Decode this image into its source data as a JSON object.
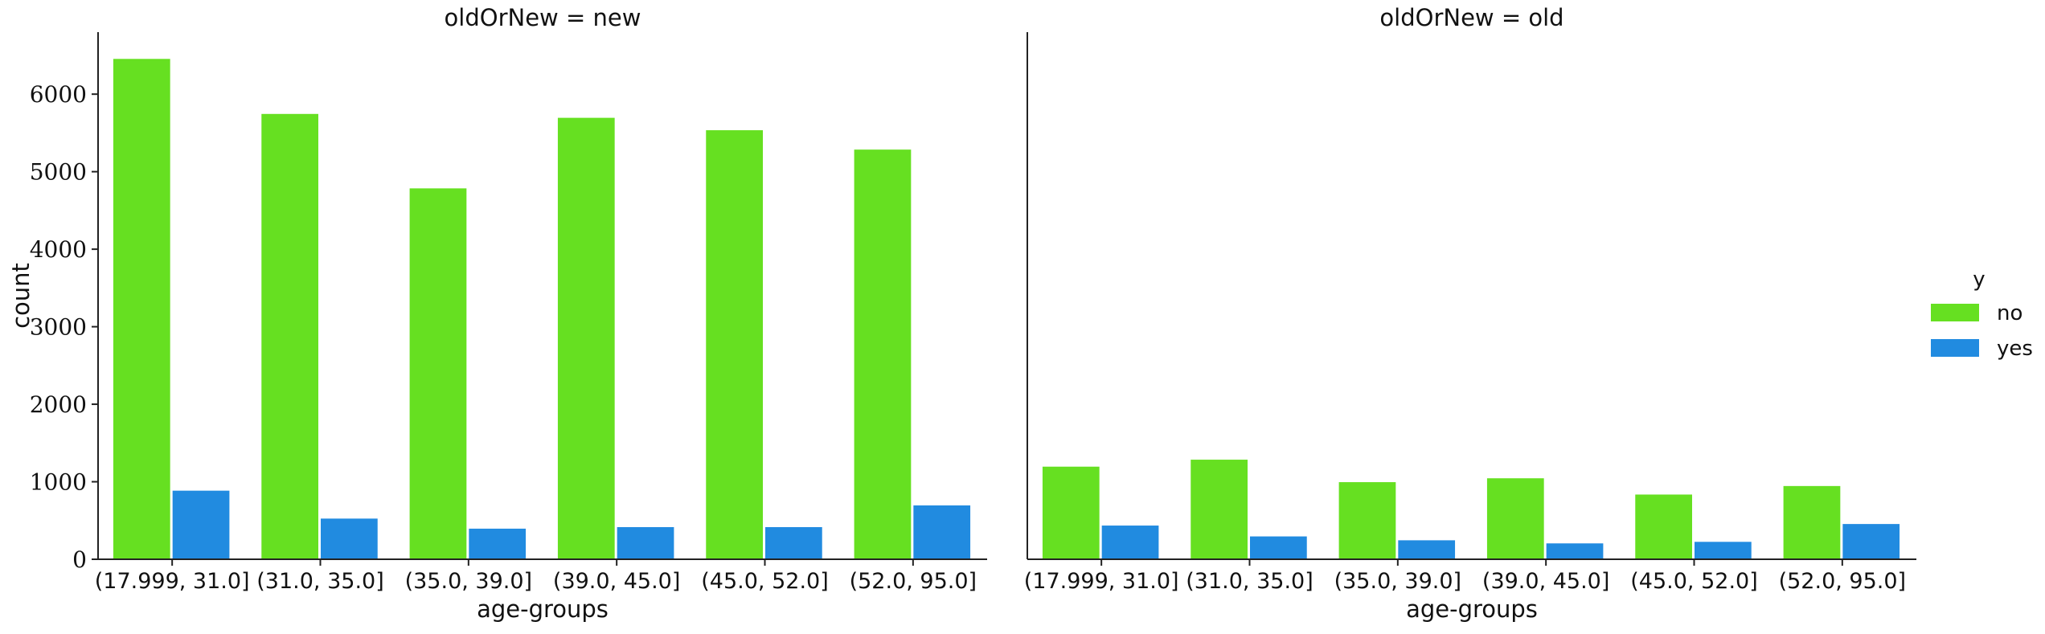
{
  "chart_data": {
    "type": "bar",
    "facet_variable": "oldOrNew",
    "hue_variable": "y",
    "categories": [
      "(17.999, 31.0]",
      "(31.0, 35.0]",
      "(35.0, 39.0]",
      "(39.0, 45.0]",
      "(45.0, 52.0]",
      "(52.0, 95.0]"
    ],
    "ylabel": "count",
    "xlabel": "age-groups",
    "ylim": [
      0,
      6800
    ],
    "yticks": [
      0,
      1000,
      2000,
      3000,
      4000,
      5000,
      6000
    ],
    "shared_y": true,
    "grid": false,
    "legend": {
      "title": "y",
      "placement": "right",
      "entries": [
        {
          "label": "no",
          "color": "#66e021"
        },
        {
          "label": "yes",
          "color": "#218be0"
        }
      ]
    },
    "panels": [
      {
        "title": "oldOrNew = new",
        "series": [
          {
            "name": "no",
            "color": "#66e021",
            "values": [
              6460,
              5750,
              4790,
              5700,
              5540,
              5290
            ]
          },
          {
            "name": "yes",
            "color": "#218be0",
            "values": [
              890,
              530,
              400,
              420,
              420,
              700
            ]
          }
        ]
      },
      {
        "title": "oldOrNew = old",
        "series": [
          {
            "name": "no",
            "color": "#66e021",
            "values": [
              1200,
              1290,
              1000,
              1050,
              840,
              950
            ]
          },
          {
            "name": "yes",
            "color": "#218be0",
            "values": [
              440,
              300,
              250,
              210,
              230,
              460
            ]
          }
        ]
      }
    ]
  }
}
